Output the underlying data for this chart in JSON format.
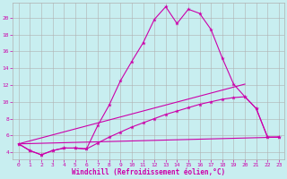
{
  "xlabel": "Windchill (Refroidissement éolien,°C)",
  "background_color": "#c8eef0",
  "grid_color": "#b0b0b0",
  "line_color": "#cc00aa",
  "xlim": [
    -0.5,
    23.5
  ],
  "ylim": [
    3.2,
    21.8
  ],
  "yticks": [
    4,
    6,
    8,
    10,
    12,
    14,
    16,
    18,
    20
  ],
  "xticks": [
    0,
    1,
    2,
    3,
    4,
    5,
    6,
    7,
    8,
    9,
    10,
    11,
    12,
    13,
    14,
    15,
    16,
    17,
    18,
    19,
    20,
    21,
    22,
    23
  ],
  "line1_x": [
    0,
    1,
    2,
    3,
    4,
    5,
    6,
    7,
    8,
    9,
    10,
    11,
    12,
    13,
    14,
    15,
    16,
    17,
    18,
    19,
    20,
    21,
    22,
    23
  ],
  "line1_y": [
    5.0,
    4.2,
    3.7,
    4.2,
    4.5,
    4.5,
    4.4,
    7.2,
    9.6,
    12.5,
    14.8,
    17.0,
    19.8,
    21.3,
    19.3,
    21.0,
    20.5,
    18.6,
    15.2,
    12.1,
    10.6,
    9.2,
    5.8,
    5.8
  ],
  "line2_x": [
    0,
    1,
    2,
    3,
    4,
    5,
    6,
    7,
    8,
    9,
    10,
    11,
    12,
    13,
    14,
    15,
    16,
    17,
    18,
    19,
    20,
    21,
    22,
    23
  ],
  "line2_y": [
    5.0,
    4.2,
    3.7,
    4.2,
    4.5,
    4.5,
    4.4,
    5.1,
    5.8,
    6.4,
    7.0,
    7.5,
    8.0,
    8.5,
    8.9,
    9.3,
    9.7,
    10.0,
    10.3,
    10.5,
    10.6,
    9.2,
    5.8,
    5.8
  ],
  "line3_x": [
    0,
    23
  ],
  "line3_y": [
    5.0,
    5.8
  ],
  "line4_x": [
    0,
    20
  ],
  "line4_y": [
    5.0,
    12.1
  ]
}
